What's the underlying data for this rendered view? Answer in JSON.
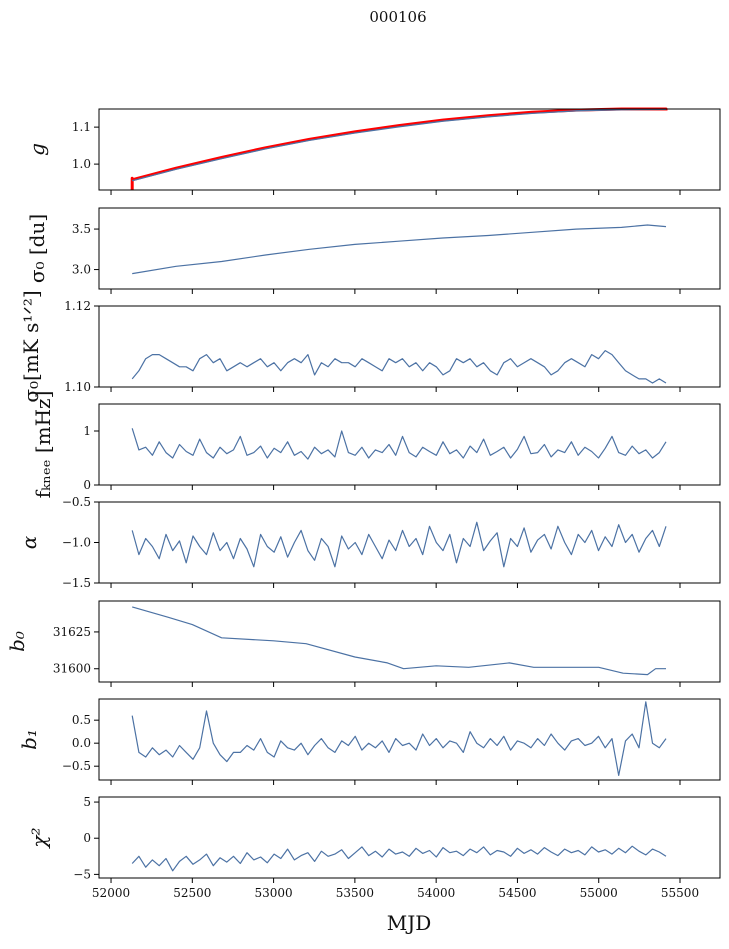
{
  "chart_data": [
    {
      "type": "line",
      "title": "000106",
      "xlabel": "MJD",
      "xlim": [
        51926,
        55746
      ],
      "xticks": [
        52000,
        52500,
        53000,
        53500,
        54000,
        54500,
        55000,
        55500
      ],
      "series_color": "#4c72a4",
      "ref_color": "#ff0000",
      "panels": [
        {
          "ylabel": "g",
          "ylim": [
            0.93,
            1.149
          ],
          "yticks": [
            1.0,
            1.1
          ],
          "ytick_labels": [
            "1.0",
            "1.1"
          ],
          "series": [
            {
              "name": "g-reference",
              "color": "#ff0000",
              "width": 3,
              "x": [
                52130,
                52130,
                52135,
                52400,
                52680,
                52950,
                53220,
                53500,
                53770,
                54040,
                54320,
                54590,
                54860,
                55140,
                55414,
                55414
              ],
              "y": [
                0.93,
                0.962,
                0.958,
                0.989,
                1.018,
                1.044,
                1.067,
                1.087,
                1.104,
                1.119,
                1.131,
                1.14,
                1.146,
                1.15,
                1.151,
                1.145
              ]
            },
            {
              "name": "g",
              "color": "#4c72a4",
              "width": 1.3,
              "x": [
                52130,
                52400,
                52680,
                52950,
                53220,
                53500,
                53770,
                54040,
                54320,
                54590,
                54860,
                55140,
                55414
              ],
              "y": [
                0.955,
                0.986,
                1.015,
                1.041,
                1.064,
                1.084,
                1.101,
                1.116,
                1.128,
                1.137,
                1.144,
                1.147,
                1.148
              ]
            }
          ]
        },
        {
          "ylabel": "σ₀ [du]",
          "ylim": [
            2.76,
            3.76
          ],
          "yticks": [
            3.0,
            3.5
          ],
          "ytick_labels": [
            "3.0",
            "3.5"
          ],
          "series": [
            {
              "name": "sigma0-du",
              "color": "#4c72a4",
              "width": 1.2,
              "x": [
                52130,
                52400,
                52680,
                52950,
                53220,
                53500,
                53770,
                54040,
                54320,
                54590,
                54860,
                55140,
                55300,
                55414
              ],
              "y": [
                2.95,
                3.04,
                3.1,
                3.18,
                3.25,
                3.31,
                3.35,
                3.39,
                3.42,
                3.46,
                3.5,
                3.52,
                3.55,
                3.53
              ]
            }
          ]
        },
        {
          "ylabel": "σ₀[mK s¹ᐟ²]",
          "ylim": [
            1.1,
            1.12
          ],
          "yticks": [
            1.1,
            1.12
          ],
          "ytick_labels": [
            "1.10",
            "1.12"
          ],
          "series": [
            {
              "name": "sigma0-mk",
              "color": "#4c72a4",
              "width": 1.2,
              "x_range": [
                52130,
                55414
              ],
              "y": [
                1.102,
                1.104,
                1.107,
                1.108,
                1.108,
                1.107,
                1.106,
                1.105,
                1.105,
                1.104,
                1.107,
                1.108,
                1.106,
                1.107,
                1.104,
                1.105,
                1.106,
                1.105,
                1.106,
                1.107,
                1.105,
                1.106,
                1.104,
                1.106,
                1.107,
                1.106,
                1.108,
                1.103,
                1.106,
                1.105,
                1.107,
                1.106,
                1.106,
                1.105,
                1.107,
                1.106,
                1.105,
                1.104,
                1.107,
                1.106,
                1.107,
                1.105,
                1.106,
                1.104,
                1.106,
                1.105,
                1.103,
                1.104,
                1.107,
                1.106,
                1.107,
                1.105,
                1.106,
                1.104,
                1.103,
                1.106,
                1.107,
                1.105,
                1.106,
                1.107,
                1.106,
                1.105,
                1.103,
                1.104,
                1.106,
                1.107,
                1.106,
                1.105,
                1.108,
                1.107,
                1.109,
                1.108,
                1.106,
                1.104,
                1.103,
                1.102,
                1.102,
                1.101,
                1.102,
                1.101
              ]
            }
          ]
        },
        {
          "ylabel": "fₖₙₑₑ [mHz]",
          "ylim": [
            0,
            1.5
          ],
          "yticks": [
            0,
            1
          ],
          "ytick_labels": [
            "0",
            "1"
          ],
          "series": [
            {
              "name": "fknee",
              "color": "#4c72a4",
              "width": 1.2,
              "x_range": [
                52130,
                55414
              ],
              "y": [
                1.05,
                0.65,
                0.7,
                0.55,
                0.8,
                0.6,
                0.5,
                0.75,
                0.62,
                0.55,
                0.85,
                0.6,
                0.5,
                0.7,
                0.58,
                0.65,
                0.9,
                0.55,
                0.6,
                0.72,
                0.5,
                0.68,
                0.6,
                0.8,
                0.55,
                0.62,
                0.48,
                0.7,
                0.58,
                0.65,
                0.52,
                1.0,
                0.6,
                0.55,
                0.7,
                0.5,
                0.65,
                0.6,
                0.75,
                0.55,
                0.9,
                0.6,
                0.52,
                0.7,
                0.62,
                0.55,
                0.8,
                0.58,
                0.65,
                0.5,
                0.72,
                0.6,
                0.85,
                0.55,
                0.62,
                0.7,
                0.5,
                0.66,
                0.9,
                0.58,
                0.6,
                0.75,
                0.52,
                0.65,
                0.6,
                0.8,
                0.55,
                0.7,
                0.62,
                0.5,
                0.68,
                0.9,
                0.6,
                0.55,
                0.72,
                0.58,
                0.65,
                0.5,
                0.6,
                0.8
              ]
            }
          ]
        },
        {
          "ylabel": "α",
          "ylim": [
            -1.5,
            -0.5
          ],
          "yticks": [
            -1.5,
            -1.0,
            -0.5
          ],
          "ytick_labels": [
            "−1.5",
            "−1.0",
            "−0.5"
          ],
          "series": [
            {
              "name": "alpha",
              "color": "#4c72a4",
              "width": 1.2,
              "x_range": [
                52130,
                55414
              ],
              "y": [
                -0.85,
                -1.15,
                -0.95,
                -1.05,
                -1.2,
                -0.9,
                -1.1,
                -0.98,
                -1.25,
                -0.92,
                -1.05,
                -1.15,
                -0.88,
                -1.1,
                -1.0,
                -1.2,
                -0.95,
                -1.08,
                -1.3,
                -0.9,
                -1.05,
                -1.12,
                -0.93,
                -1.18,
                -1.0,
                -0.85,
                -1.1,
                -1.22,
                -0.95,
                -1.05,
                -1.3,
                -0.92,
                -1.08,
                -1.0,
                -1.15,
                -0.9,
                -1.05,
                -1.2,
                -0.97,
                -1.1,
                -0.85,
                -1.05,
                -0.95,
                -1.15,
                -0.8,
                -1.0,
                -1.1,
                -0.9,
                -1.25,
                -0.95,
                -1.05,
                -0.75,
                -1.1,
                -0.98,
                -0.88,
                -1.3,
                -0.95,
                -1.05,
                -0.82,
                -1.12,
                -0.97,
                -0.9,
                -1.08,
                -0.8,
                -1.0,
                -1.15,
                -0.9,
                -1.0,
                -0.85,
                -1.1,
                -0.93,
                -1.05,
                -0.78,
                -1.0,
                -0.9,
                -1.12,
                -0.95,
                -0.85,
                -1.05,
                -0.8
              ]
            }
          ]
        },
        {
          "ylabel": "b₀",
          "ylim": [
            31591,
            31646
          ],
          "yticks": [
            31600,
            31625
          ],
          "ytick_labels": [
            "31600",
            "31625"
          ],
          "series": [
            {
              "name": "b0",
              "color": "#4c72a4",
              "width": 1.2,
              "x": [
                52130,
                52350,
                52500,
                52680,
                53000,
                53200,
                53500,
                53700,
                53800,
                54000,
                54200,
                54450,
                54600,
                55000,
                55150,
                55300,
                55350,
                55414
              ],
              "y": [
                31642,
                31635,
                31630,
                31621,
                31619,
                31617,
                31608,
                31604,
                31600,
                31602,
                31601,
                31604,
                31601,
                31601,
                31597,
                31596,
                31600,
                31600
              ]
            }
          ]
        },
        {
          "ylabel": "b₁",
          "ylim": [
            -0.8,
            0.96
          ],
          "yticks": [
            -0.5,
            0.0,
            0.5
          ],
          "ytick_labels": [
            "−0.5",
            "0.0",
            "0.5"
          ],
          "series": [
            {
              "name": "b1",
              "color": "#4c72a4",
              "width": 1.2,
              "x_range": [
                52130,
                55414
              ],
              "y": [
                0.6,
                -0.2,
                -0.3,
                -0.1,
                -0.25,
                -0.15,
                -0.3,
                -0.05,
                -0.2,
                -0.35,
                -0.1,
                0.7,
                0.0,
                -0.25,
                -0.4,
                -0.2,
                -0.2,
                -0.05,
                -0.15,
                0.1,
                -0.2,
                -0.3,
                0.05,
                -0.1,
                -0.15,
                0.0,
                -0.25,
                -0.05,
                0.1,
                -0.1,
                -0.2,
                0.05,
                -0.05,
                0.15,
                -0.15,
                0.0,
                -0.1,
                0.05,
                -0.2,
                0.1,
                -0.05,
                0.0,
                -0.15,
                0.2,
                -0.05,
                0.1,
                -0.1,
                0.05,
                0.0,
                -0.2,
                0.25,
                0.0,
                -0.1,
                0.1,
                -0.05,
                0.15,
                -0.15,
                0.05,
                0.0,
                -0.1,
                0.1,
                -0.05,
                0.2,
                0.0,
                -0.15,
                0.05,
                0.1,
                -0.05,
                0.0,
                0.15,
                -0.1,
                0.1,
                -0.7,
                0.05,
                0.2,
                -0.1,
                0.9,
                0.0,
                -0.1,
                0.1
              ]
            }
          ]
        },
        {
          "ylabel": "χ²",
          "ylim": [
            -5.5,
            5.7
          ],
          "yticks": [
            -5,
            0,
            5
          ],
          "ytick_labels": [
            "−5",
            "0",
            "5"
          ],
          "series": [
            {
              "name": "chi2",
              "color": "#4c72a4",
              "width": 1.2,
              "x_range": [
                52130,
                55414
              ],
              "y": [
                -3.5,
                -2.5,
                -4,
                -3,
                -3.8,
                -2.8,
                -4.5,
                -3.2,
                -2.5,
                -3.6,
                -3,
                -2.2,
                -3.8,
                -2.7,
                -3.3,
                -2.5,
                -3.5,
                -2,
                -3,
                -2.6,
                -3.4,
                -2.2,
                -2.8,
                -1.5,
                -3,
                -2.4,
                -2,
                -3.2,
                -1.8,
                -2.5,
                -2.2,
                -1.6,
                -2.8,
                -2,
                -1.2,
                -2.4,
                -1.8,
                -2.6,
                -1.5,
                -2.2,
                -1.9,
                -2.5,
                -1.4,
                -2.1,
                -1.7,
                -2.6,
                -1.3,
                -2,
                -1.8,
                -2.4,
                -1.5,
                -2,
                -1.2,
                -2.3,
                -1.7,
                -1.9,
                -2.5,
                -1.4,
                -2.1,
                -1.6,
                -2.2,
                -1.3,
                -1.9,
                -2.4,
                -1.5,
                -2,
                -1.7,
                -2.3,
                -1.2,
                -1.9,
                -1.6,
                -2.2,
                -1.4,
                -2,
                -1.1,
                -1.8,
                -2.3,
                -1.5,
                -1.9,
                -2.5
              ]
            }
          ]
        }
      ]
    }
  ]
}
